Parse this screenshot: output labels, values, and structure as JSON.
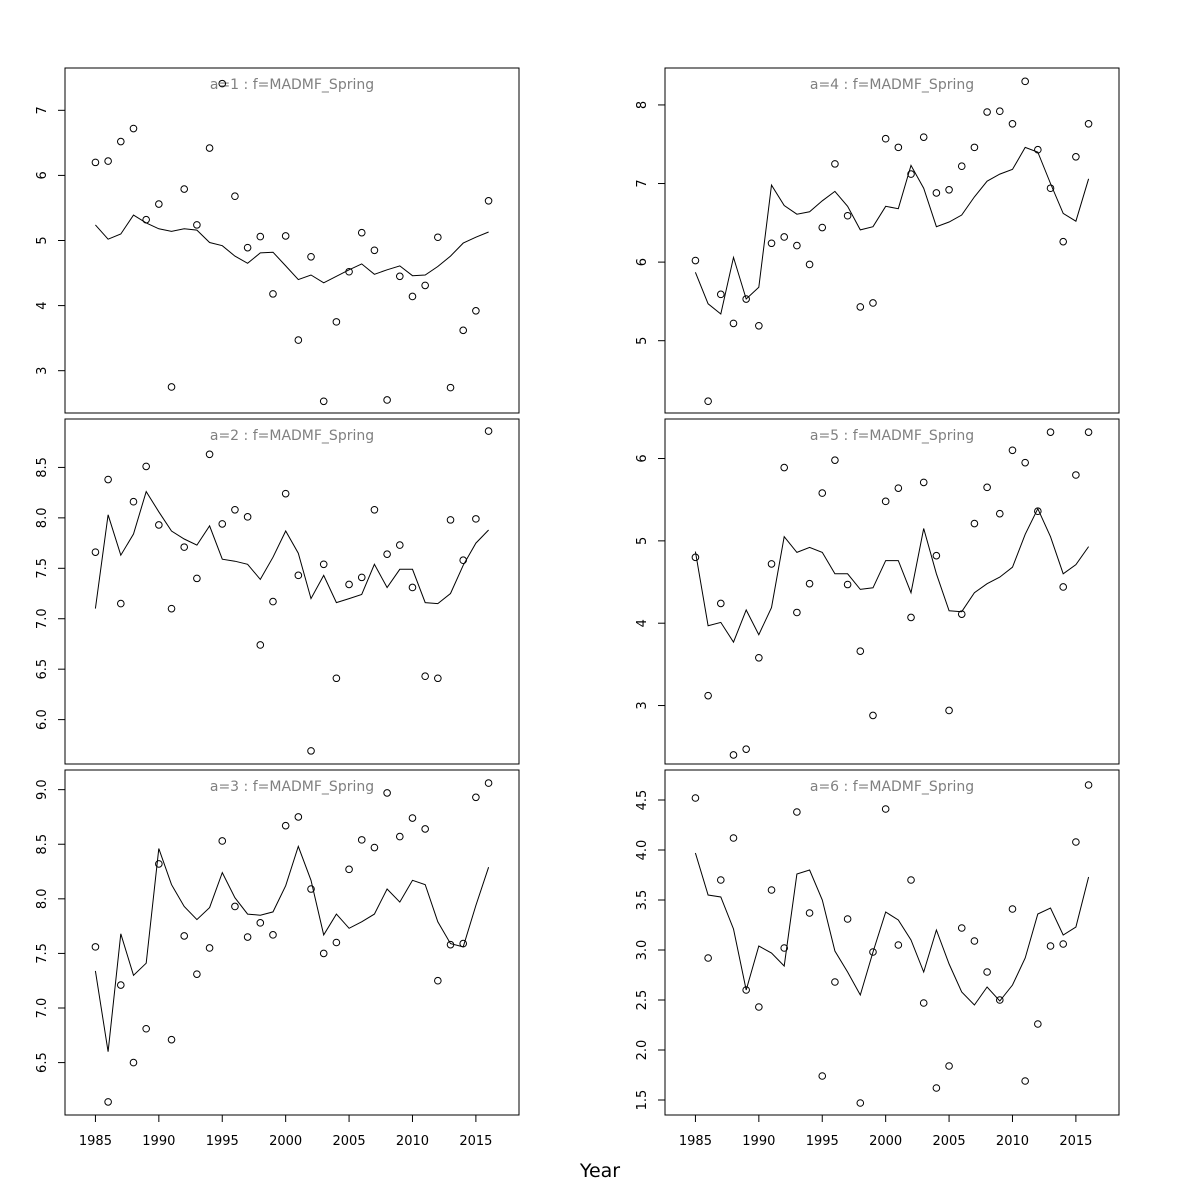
{
  "xlabel": "Year",
  "chart_data": [
    {
      "type": "scatter",
      "title": "a=1 : f=MADMF_Spring",
      "x_ticks": [
        1985,
        1990,
        1995,
        2000,
        2005,
        2010,
        2015
      ],
      "y_ticks": [
        "3",
        "4",
        "5",
        "6",
        "7"
      ],
      "xlim": [
        1982.6,
        2018.4
      ],
      "ylim": [
        2.35,
        7.65
      ],
      "x": [
        1985,
        1986,
        1987,
        1988,
        1989,
        1990,
        1991,
        1992,
        1993,
        1994,
        1995,
        1996,
        1997,
        1998,
        1999,
        2000,
        2001,
        2002,
        2003,
        2004,
        2005,
        2006,
        2007,
        2008,
        2009,
        2010,
        2011,
        2012,
        2013,
        2014,
        2015,
        2016
      ],
      "series": [
        {
          "kind": "points",
          "values": [
            6.2,
            6.22,
            6.52,
            6.72,
            5.32,
            5.56,
            2.75,
            5.79,
            5.24,
            6.42,
            7.41,
            5.68,
            4.89,
            5.06,
            4.18,
            5.07,
            3.47,
            4.75,
            2.53,
            3.75,
            4.52,
            5.12,
            4.85,
            2.55,
            4.45,
            4.14,
            4.31,
            5.05,
            2.74,
            3.62,
            3.92,
            5.61
          ]
        },
        {
          "kind": "line",
          "values": [
            5.24,
            5.02,
            5.1,
            5.39,
            5.27,
            5.18,
            5.14,
            5.18,
            5.16,
            4.97,
            4.92,
            4.76,
            4.65,
            4.81,
            4.82,
            4.61,
            4.4,
            4.47,
            4.35,
            4.45,
            4.55,
            4.64,
            4.48,
            4.55,
            4.61,
            4.46,
            4.47,
            4.6,
            4.76,
            4.96,
            5.05,
            5.13
          ]
        }
      ]
    },
    {
      "type": "scatter",
      "title": "a=2 : f=MADMF_Spring",
      "x_ticks": [
        1985,
        1990,
        1995,
        2000,
        2005,
        2010,
        2015
      ],
      "y_ticks": [
        "6.0",
        "6.5",
        "7.0",
        "7.5",
        "8.0",
        "8.5"
      ],
      "xlim": [
        1982.6,
        2018.4
      ],
      "ylim": [
        5.56,
        8.98
      ],
      "x": [
        1985,
        1986,
        1987,
        1988,
        1989,
        1990,
        1991,
        1992,
        1993,
        1994,
        1995,
        1996,
        1997,
        1998,
        1999,
        2000,
        2001,
        2002,
        2003,
        2004,
        2005,
        2006,
        2007,
        2008,
        2009,
        2010,
        2011,
        2012,
        2013,
        2014,
        2015,
        2016
      ],
      "series": [
        {
          "kind": "points",
          "values": [
            7.66,
            8.38,
            7.15,
            8.16,
            8.51,
            7.93,
            7.1,
            7.71,
            7.4,
            8.63,
            7.94,
            8.08,
            8.01,
            6.74,
            7.17,
            8.24,
            7.43,
            5.69,
            7.54,
            6.41,
            7.34,
            7.41,
            8.08,
            7.64,
            7.73,
            7.31,
            6.43,
            6.41,
            7.98,
            7.58,
            7.99,
            8.86
          ]
        },
        {
          "kind": "line",
          "values": [
            7.1,
            8.03,
            7.63,
            7.84,
            8.26,
            8.06,
            7.87,
            7.79,
            7.73,
            7.92,
            7.59,
            7.57,
            7.54,
            7.39,
            7.61,
            7.87,
            7.65,
            7.2,
            7.43,
            7.16,
            7.2,
            7.24,
            7.54,
            7.31,
            7.49,
            7.49,
            7.16,
            7.15,
            7.25,
            7.53,
            7.75,
            7.88
          ]
        }
      ]
    },
    {
      "type": "scatter",
      "title": "a=3 : f=MADMF_Spring",
      "x_ticks": [
        1985,
        1990,
        1995,
        2000,
        2005,
        2010,
        2015
      ],
      "y_ticks": [
        "6.5",
        "7.0",
        "7.5",
        "8.0",
        "8.5",
        "9.0"
      ],
      "xlim": [
        1982.6,
        2018.4
      ],
      "ylim": [
        6.02,
        9.18
      ],
      "x": [
        1985,
        1986,
        1987,
        1988,
        1989,
        1990,
        1991,
        1992,
        1993,
        1994,
        1995,
        1996,
        1997,
        1998,
        1999,
        2000,
        2001,
        2002,
        2003,
        2004,
        2005,
        2006,
        2007,
        2008,
        2009,
        2010,
        2011,
        2012,
        2013,
        2014,
        2015,
        2016
      ],
      "series": [
        {
          "kind": "points",
          "values": [
            7.56,
            6.14,
            7.21,
            6.5,
            6.81,
            8.32,
            6.71,
            7.66,
            7.31,
            7.55,
            8.53,
            7.93,
            7.65,
            7.78,
            7.67,
            8.67,
            8.75,
            8.09,
            7.5,
            7.6,
            8.27,
            8.54,
            8.47,
            8.97,
            8.57,
            8.74,
            8.64,
            7.25,
            7.58,
            7.59,
            8.93,
            9.06
          ]
        },
        {
          "kind": "line",
          "values": [
            7.34,
            6.6,
            7.68,
            7.3,
            7.41,
            8.46,
            8.13,
            7.93,
            7.81,
            7.92,
            8.24,
            8.01,
            7.86,
            7.85,
            7.88,
            8.12,
            8.48,
            8.17,
            7.67,
            7.86,
            7.73,
            7.79,
            7.86,
            8.09,
            7.97,
            8.17,
            8.13,
            7.79,
            7.59,
            7.56,
            7.94,
            8.29
          ]
        }
      ]
    },
    {
      "type": "scatter",
      "title": "a=4 : f=MADMF_Spring",
      "x_ticks": [
        1985,
        1990,
        1995,
        2000,
        2005,
        2010,
        2015
      ],
      "y_ticks": [
        "5",
        "6",
        "7",
        "8"
      ],
      "xlim": [
        1982.6,
        2018.4
      ],
      "ylim": [
        4.08,
        8.47
      ],
      "x": [
        1985,
        1986,
        1987,
        1988,
        1989,
        1990,
        1991,
        1992,
        1993,
        1994,
        1995,
        1996,
        1997,
        1998,
        1999,
        2000,
        2001,
        2002,
        2003,
        2004,
        2005,
        2006,
        2007,
        2008,
        2009,
        2010,
        2011,
        2012,
        2013,
        2014,
        2015,
        2016
      ],
      "series": [
        {
          "kind": "points",
          "values": [
            6.02,
            4.23,
            5.59,
            5.22,
            5.53,
            5.19,
            6.24,
            6.32,
            6.21,
            5.97,
            6.44,
            7.25,
            6.59,
            5.43,
            5.48,
            7.57,
            7.46,
            7.12,
            7.59,
            6.88,
            6.92,
            7.22,
            7.46,
            7.91,
            7.92,
            7.76,
            8.3,
            7.43,
            6.94,
            6.26,
            7.34,
            7.76
          ]
        },
        {
          "kind": "line",
          "values": [
            5.87,
            5.47,
            5.34,
            6.06,
            5.53,
            5.68,
            6.98,
            6.72,
            6.61,
            6.64,
            6.78,
            6.9,
            6.71,
            6.41,
            6.45,
            6.71,
            6.68,
            7.23,
            6.94,
            6.45,
            6.51,
            6.6,
            6.83,
            7.03,
            7.12,
            7.18,
            7.46,
            7.4,
            7.0,
            6.62,
            6.52,
            7.06
          ]
        }
      ]
    },
    {
      "type": "scatter",
      "title": "a=5 : f=MADMF_Spring",
      "x_ticks": [
        1985,
        1990,
        1995,
        2000,
        2005,
        2010,
        2015
      ],
      "y_ticks": [
        "3",
        "4",
        "5",
        "6"
      ],
      "xlim": [
        1982.6,
        2018.4
      ],
      "ylim": [
        2.29,
        6.48
      ],
      "x": [
        1985,
        1986,
        1987,
        1988,
        1989,
        1990,
        1991,
        1992,
        1993,
        1994,
        1995,
        1996,
        1997,
        1998,
        1999,
        2000,
        2001,
        2002,
        2003,
        2004,
        2005,
        2006,
        2007,
        2008,
        2009,
        2010,
        2011,
        2012,
        2013,
        2014,
        2015,
        2016
      ],
      "series": [
        {
          "kind": "points",
          "values": [
            4.8,
            3.12,
            4.24,
            2.4,
            2.47,
            3.58,
            4.72,
            5.89,
            4.13,
            4.48,
            5.58,
            5.98,
            4.47,
            3.66,
            2.88,
            5.48,
            5.64,
            4.07,
            5.71,
            4.82,
            2.94,
            4.11,
            5.21,
            5.65,
            5.33,
            6.1,
            5.95,
            5.36,
            6.32,
            4.44,
            5.8,
            6.32
          ]
        },
        {
          "kind": "line",
          "values": [
            4.87,
            3.97,
            4.01,
            3.77,
            4.16,
            3.86,
            4.19,
            5.05,
            4.86,
            4.92,
            4.86,
            4.6,
            4.6,
            4.41,
            4.43,
            4.76,
            4.76,
            4.37,
            5.15,
            4.6,
            4.15,
            4.14,
            4.37,
            4.48,
            4.56,
            4.68,
            5.08,
            5.39,
            5.05,
            4.6,
            4.71,
            4.93
          ]
        }
      ]
    },
    {
      "type": "scatter",
      "title": "a=6 : f=MADMF_Spring",
      "x_ticks": [
        1985,
        1990,
        1995,
        2000,
        2005,
        2010,
        2015
      ],
      "y_ticks": [
        "1.5",
        "2.0",
        "2.5",
        "3.0",
        "3.5",
        "4.0",
        "4.5"
      ],
      "xlim": [
        1982.6,
        2018.4
      ],
      "ylim": [
        1.35,
        4.8
      ],
      "x": [
        1985,
        1986,
        1987,
        1988,
        1989,
        1990,
        1991,
        1992,
        1993,
        1994,
        1995,
        1996,
        1997,
        1998,
        1999,
        2000,
        2001,
        2002,
        2003,
        2004,
        2005,
        2006,
        2007,
        2008,
        2009,
        2010,
        2011,
        2012,
        2013,
        2014,
        2015,
        2016
      ],
      "series": [
        {
          "kind": "points",
          "values": [
            4.52,
            2.92,
            3.7,
            4.12,
            2.6,
            2.43,
            3.6,
            3.02,
            4.38,
            3.37,
            1.74,
            2.68,
            3.31,
            1.47,
            2.98,
            4.41,
            3.05,
            3.7,
            2.47,
            1.62,
            1.84,
            3.22,
            3.09,
            2.78,
            2.5,
            3.41,
            1.69,
            2.26,
            3.04,
            3.06,
            4.08,
            4.65
          ]
        },
        {
          "kind": "line",
          "values": [
            3.97,
            3.55,
            3.53,
            3.21,
            2.6,
            3.04,
            2.97,
            2.84,
            3.76,
            3.8,
            3.5,
            2.99,
            2.78,
            2.55,
            2.98,
            3.38,
            3.3,
            3.1,
            2.78,
            3.2,
            2.86,
            2.58,
            2.45,
            2.63,
            2.49,
            2.65,
            2.92,
            3.36,
            3.42,
            3.15,
            3.23,
            3.73
          ]
        }
      ]
    }
  ]
}
